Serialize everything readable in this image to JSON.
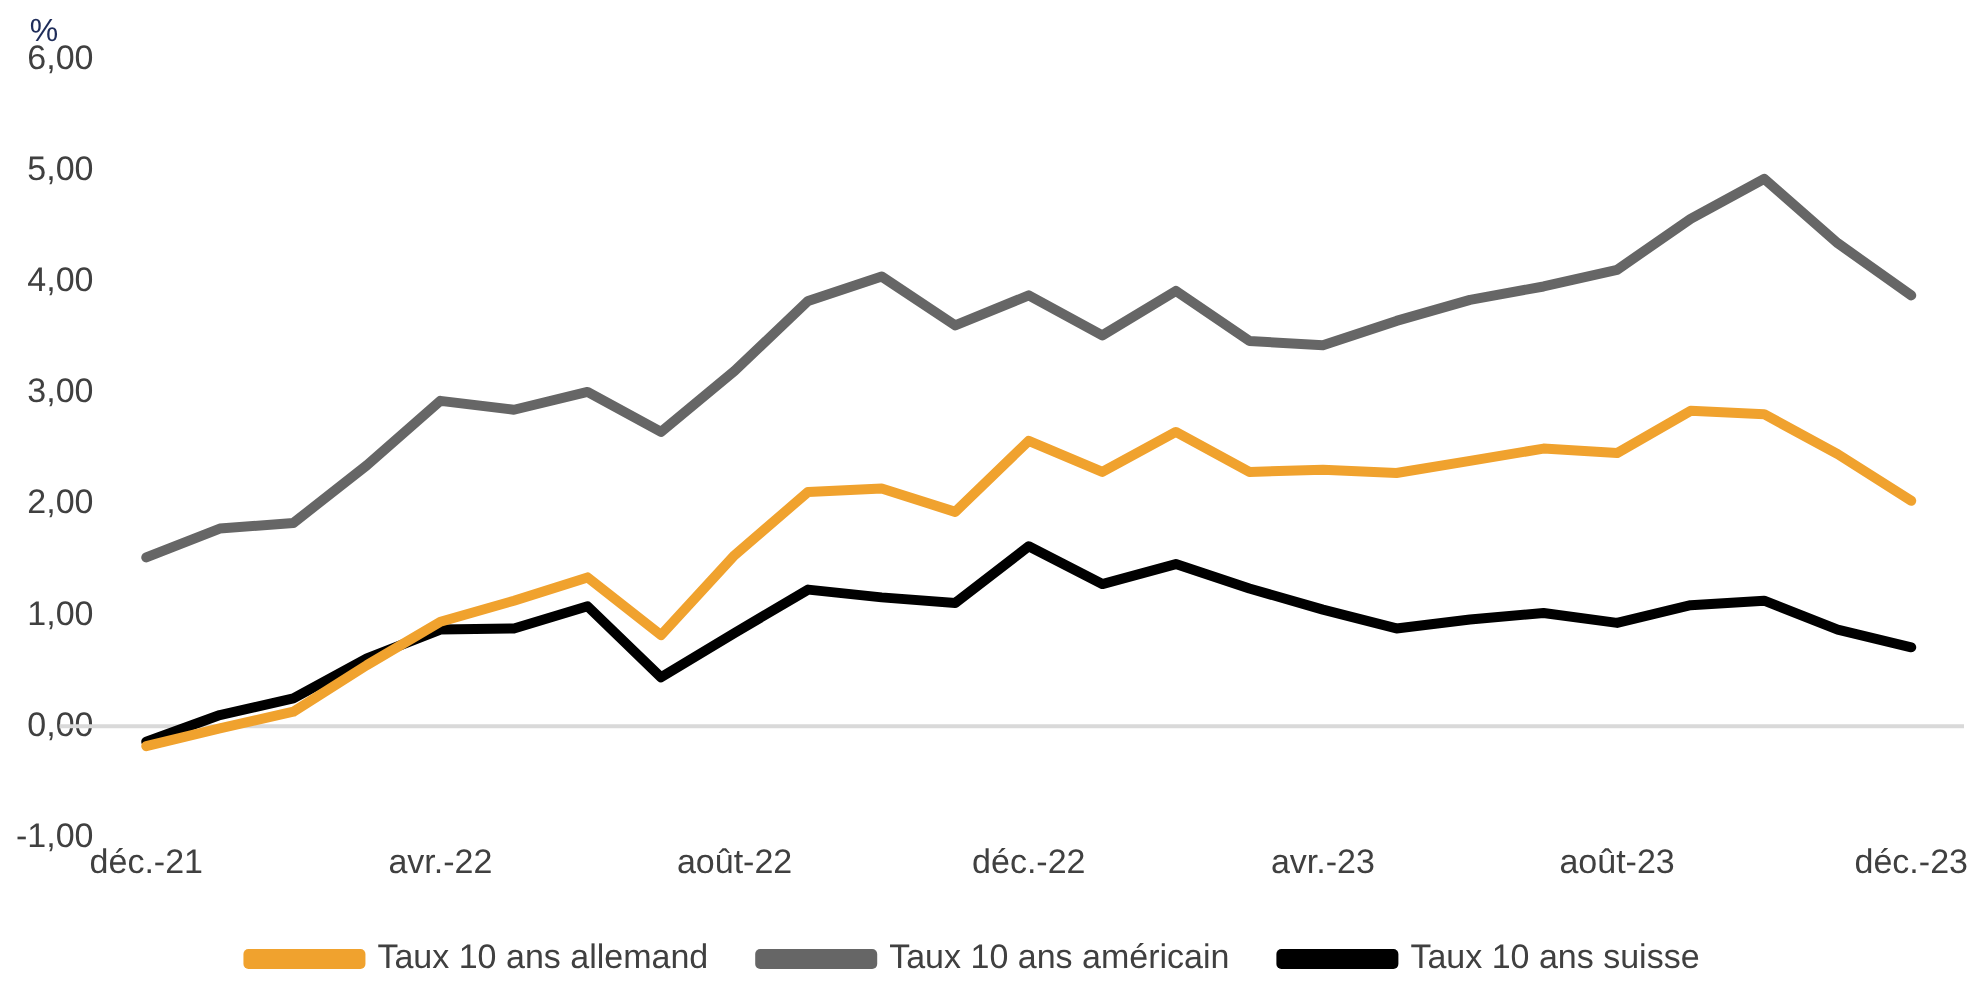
{
  "chart_data": {
    "type": "line",
    "ylabel": "%",
    "categories": [
      "déc.-21",
      null,
      null,
      null,
      "avr.-22",
      null,
      null,
      null,
      "août-22",
      null,
      null,
      null,
      "déc.-22",
      null,
      null,
      null,
      "avr.-23",
      null,
      null,
      null,
      "août-23",
      null,
      null,
      null,
      "déc.-23"
    ],
    "series": [
      {
        "name": "Taux 10 ans allemand",
        "color": "#f0a22e",
        "values": [
          -0.18,
          -0.02,
          0.13,
          0.55,
          0.94,
          1.13,
          1.34,
          0.82,
          1.54,
          2.11,
          2.14,
          1.93,
          2.57,
          2.29,
          2.65,
          2.29,
          2.31,
          2.28,
          2.39,
          2.5,
          2.46,
          2.84,
          2.81,
          2.45,
          2.03
        ]
      },
      {
        "name": "Taux 10 ans américain",
        "color": "#666666",
        "values": [
          1.52,
          1.78,
          1.83,
          2.35,
          2.93,
          2.85,
          3.01,
          2.65,
          3.2,
          3.83,
          4.05,
          3.61,
          3.88,
          3.52,
          3.92,
          3.47,
          3.43,
          3.65,
          3.84,
          3.96,
          4.11,
          4.57,
          4.93,
          4.35,
          3.88
        ]
      },
      {
        "name": "Taux 10 ans suisse",
        "color": "#000000",
        "values": [
          -0.14,
          0.1,
          0.25,
          0.61,
          0.87,
          0.88,
          1.08,
          0.44,
          0.84,
          1.23,
          1.16,
          1.11,
          1.62,
          1.28,
          1.46,
          1.24,
          1.05,
          0.88,
          0.96,
          1.02,
          0.93,
          1.09,
          1.13,
          0.87,
          0.71
        ]
      }
    ],
    "ylim": [
      -1,
      6
    ],
    "yticks": [
      {
        "value": -1,
        "label": "-1,00"
      },
      {
        "value": 0,
        "label": "0,00"
      },
      {
        "value": 1,
        "label": "1,00"
      },
      {
        "value": 2,
        "label": "2,00"
      },
      {
        "value": 3,
        "label": "3,00"
      },
      {
        "value": 4,
        "label": "4,00"
      },
      {
        "value": 5,
        "label": "5,00"
      },
      {
        "value": 6,
        "label": "6,00"
      }
    ],
    "ref_lines": [
      {
        "axis": "y",
        "value": 0,
        "color": "#d9d9d9"
      }
    ],
    "grid": false,
    "legend": "bottom",
    "marker": "none",
    "line_style": "solid"
  }
}
